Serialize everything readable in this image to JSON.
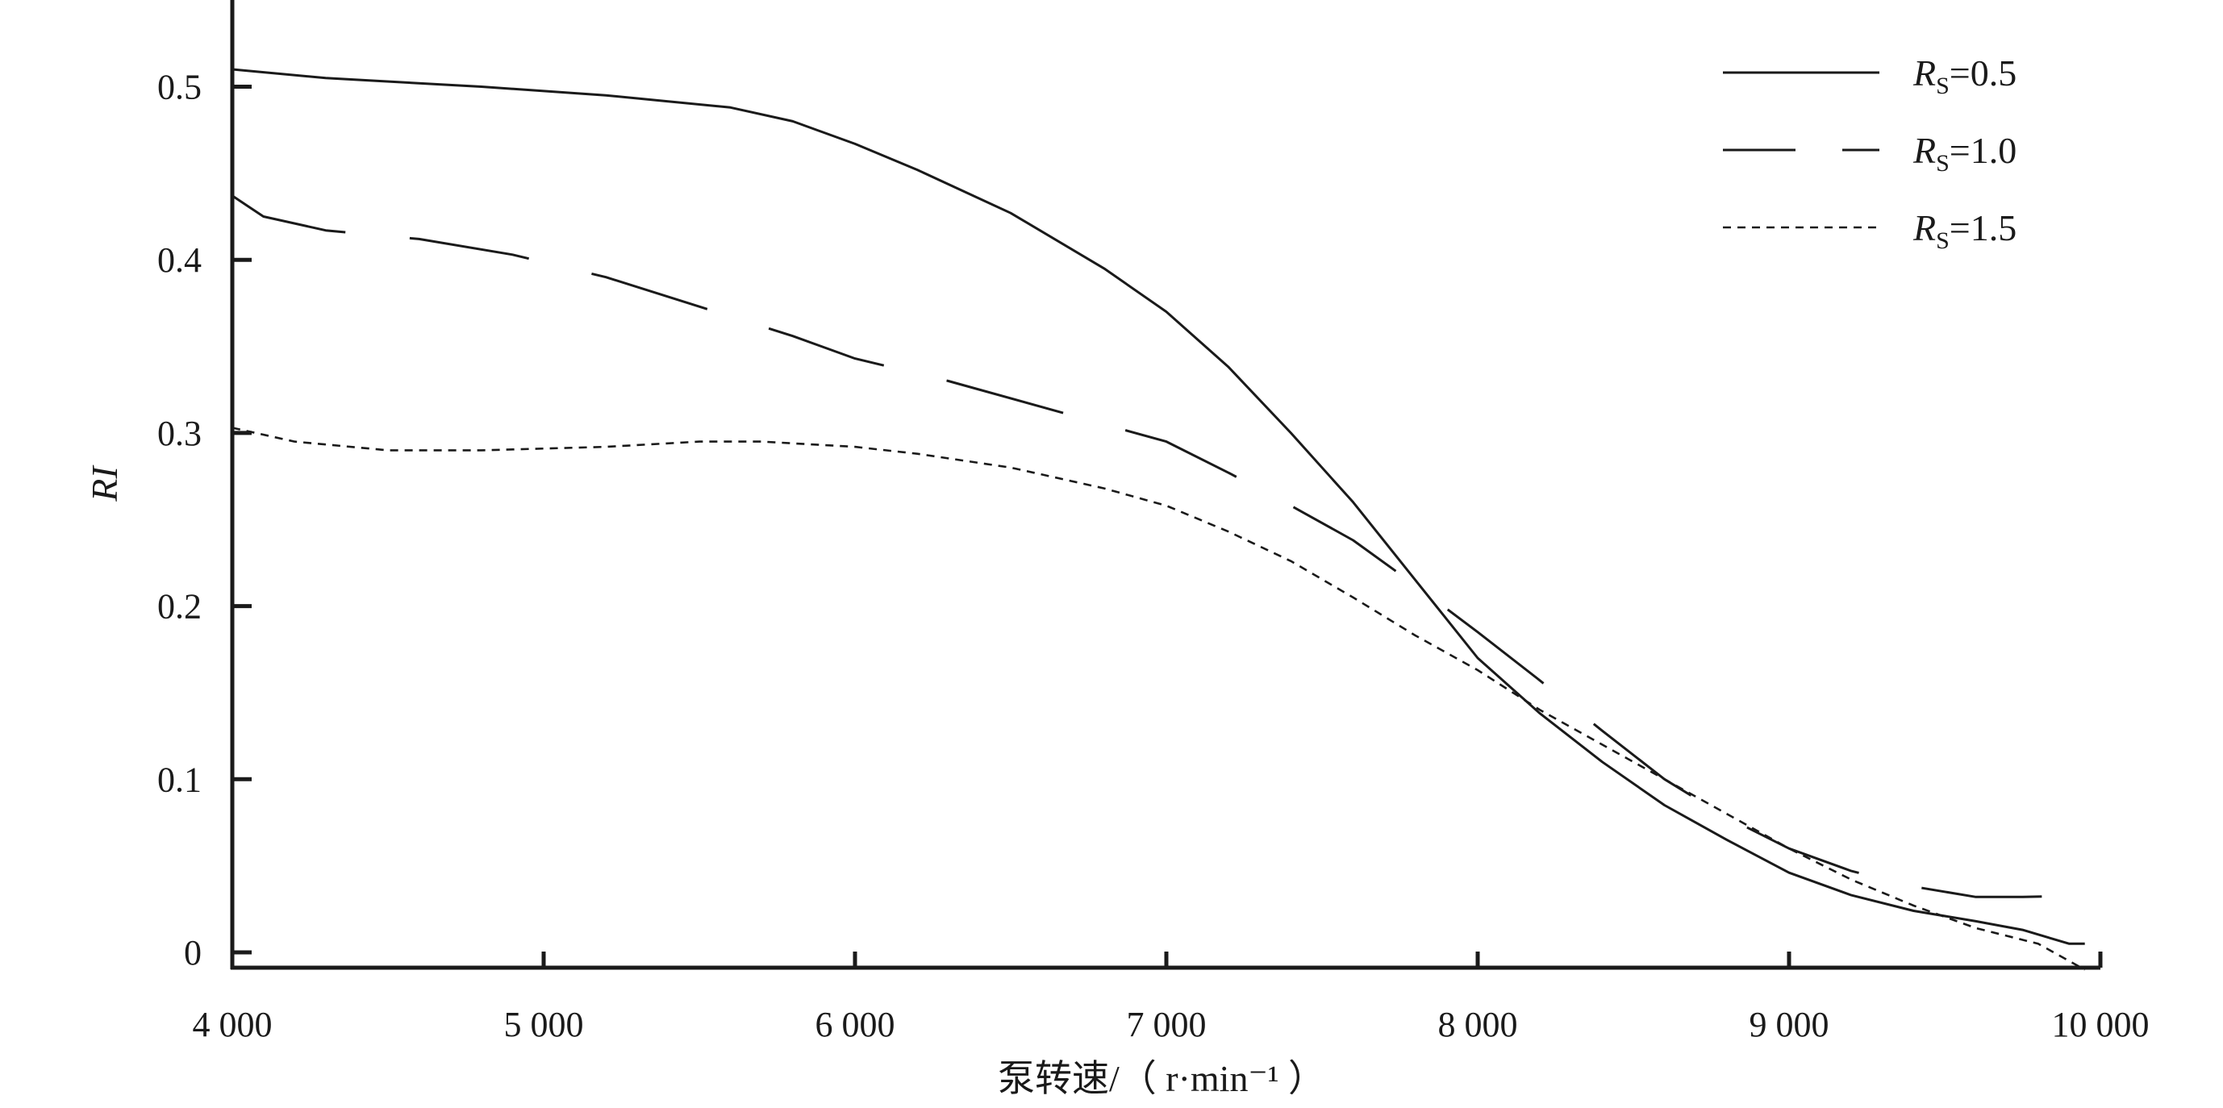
{
  "chart_data": {
    "type": "line",
    "title": "",
    "xlabel": "泵转速/（ r·min⁻¹ ）",
    "ylabel": "RI",
    "xlim": [
      4000,
      10000
    ],
    "ylim": [
      -0.01,
      0.55
    ],
    "x_ticks": [
      {
        "value": 4000,
        "label": "4 000"
      },
      {
        "value": 5000,
        "label": "5 000"
      },
      {
        "value": 6000,
        "label": "6 000"
      },
      {
        "value": 7000,
        "label": "7 000"
      },
      {
        "value": 8000,
        "label": "8 000"
      },
      {
        "value": 9000,
        "label": "9 000"
      },
      {
        "value": 10000,
        "label": "10 000"
      }
    ],
    "y_ticks": [
      {
        "value": 0,
        "label": "0"
      },
      {
        "value": 0.1,
        "label": "0.1"
      },
      {
        "value": 0.2,
        "label": "0.2"
      },
      {
        "value": 0.3,
        "label": "0.3"
      },
      {
        "value": 0.4,
        "label": "0.4"
      },
      {
        "value": 0.5,
        "label": "0.5"
      }
    ],
    "grid": false,
    "legend_position": "top-right",
    "series": [
      {
        "name": "RS=0.5",
        "label_main": "R",
        "label_sub": "S",
        "label_rest": "=0.5",
        "style": "solid",
        "x": [
          4000,
          4300,
          4800,
          5200,
          5600,
          5800,
          6000,
          6200,
          6500,
          6800,
          7000,
          7200,
          7400,
          7600,
          7800,
          8000,
          8200,
          8400,
          8600,
          8800,
          9000,
          9200,
          9400,
          9600,
          9750,
          9900,
          9950
        ],
        "y": [
          0.51,
          0.505,
          0.5,
          0.495,
          0.488,
          0.48,
          0.467,
          0.452,
          0.427,
          0.395,
          0.37,
          0.338,
          0.3,
          0.26,
          0.215,
          0.17,
          0.138,
          0.11,
          0.085,
          0.065,
          0.046,
          0.033,
          0.024,
          0.018,
          0.013,
          0.005,
          0.005
        ]
      },
      {
        "name": "RS=1.0",
        "label_main": "R",
        "label_sub": "S",
        "label_rest": "=1.0",
        "style": "longdash",
        "x": [
          4000,
          4100,
          4300,
          4600,
          4900,
          5200,
          5500,
          5800,
          6000,
          6300,
          6600,
          6800,
          7000,
          7200,
          7400,
          7600,
          7800,
          8000,
          8200,
          8400,
          8600,
          8800,
          9000,
          9200,
          9400,
          9600,
          9750,
          10000
        ],
        "y": [
          0.437,
          0.425,
          0.417,
          0.412,
          0.403,
          0.39,
          0.373,
          0.356,
          0.343,
          0.33,
          0.315,
          0.305,
          0.295,
          0.277,
          0.258,
          0.238,
          0.212,
          0.185,
          0.157,
          0.128,
          0.1,
          0.078,
          0.06,
          0.047,
          0.038,
          0.032,
          0.032,
          0.033
        ]
      },
      {
        "name": "RS=1.5",
        "label_main": "R",
        "label_sub": "S",
        "label_rest": "=1.5",
        "style": "dotted",
        "x": [
          4000,
          4200,
          4500,
          4800,
          5200,
          5500,
          5700,
          6000,
          6200,
          6500,
          6800,
          7000,
          7200,
          7400,
          7600,
          7800,
          8000,
          8200,
          8400,
          8600,
          8800,
          9000,
          9200,
          9400,
          9600,
          9800,
          9950
        ],
        "y": [
          0.303,
          0.295,
          0.29,
          0.29,
          0.292,
          0.295,
          0.295,
          0.292,
          0.288,
          0.28,
          0.268,
          0.258,
          0.243,
          0.226,
          0.205,
          0.183,
          0.163,
          0.14,
          0.12,
          0.1,
          0.08,
          0.06,
          0.042,
          0.027,
          0.014,
          0.005,
          -0.01
        ]
      }
    ]
  }
}
